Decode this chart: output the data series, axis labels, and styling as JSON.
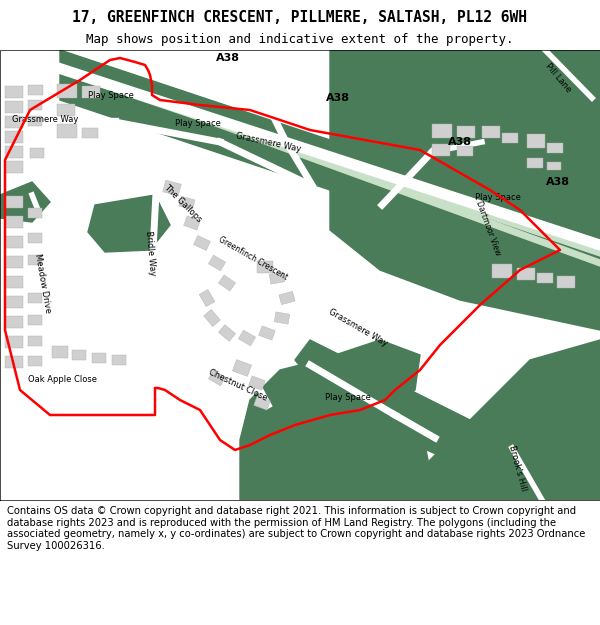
{
  "title_line1": "17, GREENFINCH CRESCENT, PILLMERE, SALTASH, PL12 6WH",
  "title_line2": "Map shows position and indicative extent of the property.",
  "footer": "Contains OS data © Crown copyright and database right 2021. This information is subject to Crown copyright and database rights 2023 and is reproduced with the permission of HM Land Registry. The polygons (including the associated geometry, namely x, y co-ordinates) are subject to Crown copyright and database rights 2023 Ordnance Survey 100026316.",
  "bg_color": "#f5f5f0",
  "map_bg": "#ffffff",
  "green_dark": "#4a7c59",
  "green_light": "#c8dfc8",
  "road_color": "#ffffff",
  "building_color": "#d0d0d0",
  "building_edge": "#b0b0b0",
  "red_line": "#ff0000",
  "text_color": "#000000",
  "footer_color": "#000000"
}
